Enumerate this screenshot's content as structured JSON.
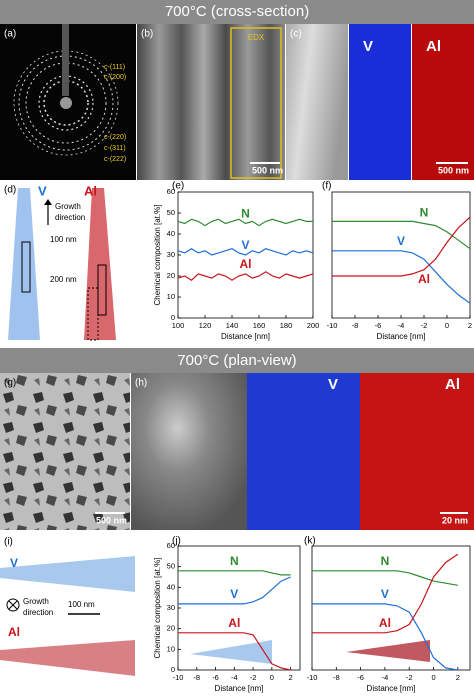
{
  "headers": [
    "700°C (cross-section)",
    "700°C (plan-view)"
  ],
  "panel_labels": [
    "(a)",
    "(b)",
    "(c)",
    "(d)",
    "(e)",
    "(f)",
    "(g)",
    "(h)",
    "(i)",
    "(j)",
    "(k)"
  ],
  "a": {
    "rings": [
      "c-(111)",
      "c-(200)",
      "c-(220)",
      "c-(311)",
      "c-(222)"
    ]
  },
  "b": {
    "box": "EDX",
    "scale": "500 nm"
  },
  "c": {
    "maps": [
      "V",
      "Al"
    ],
    "scale": "500 nm"
  },
  "d": {
    "maps": [
      "V",
      "Al"
    ],
    "growth": [
      "Growth",
      "direction"
    ],
    "scales": [
      "100 nm",
      "200 nm"
    ]
  },
  "g": {
    "scale": "500 nm"
  },
  "h": {
    "maps": [
      "V",
      "Al"
    ],
    "scale": "20 nm"
  },
  "i": {
    "maps": [
      "V",
      "Al"
    ],
    "growth": [
      "Growth",
      "direction"
    ],
    "scale": "100 nm"
  },
  "chart_data": [
    {
      "type": "line",
      "x_label": "Distance [nm]",
      "y_label": "Chemical composition [at.%]",
      "x": [
        100,
        105,
        110,
        115,
        120,
        125,
        130,
        135,
        140,
        145,
        150,
        155,
        160,
        165,
        170,
        175,
        180,
        185,
        190,
        195,
        200
      ],
      "xlim": [
        100,
        200
      ],
      "xticks": [
        100,
        120,
        140,
        160,
        180,
        200
      ],
      "ylim": [
        0,
        60
      ],
      "yticks": [
        0,
        10,
        20,
        30,
        40,
        50,
        60
      ],
      "series": [
        {
          "name": "N",
          "color": "#2e8b2e",
          "values": [
            46,
            45,
            47,
            46,
            44,
            46,
            47,
            45,
            46,
            47,
            45,
            46,
            44,
            46,
            47,
            46,
            45,
            46,
            47,
            46,
            46
          ]
        },
        {
          "name": "V",
          "color": "#1e6fd6",
          "values": [
            32,
            31,
            33,
            31,
            32,
            30,
            31,
            32,
            33,
            31,
            30,
            32,
            31,
            33,
            32,
            31,
            30,
            32,
            31,
            32,
            31
          ]
        },
        {
          "name": "Al",
          "color": "#c8141c",
          "values": [
            19,
            20,
            18,
            21,
            20,
            19,
            21,
            20,
            18,
            20,
            21,
            19,
            20,
            22,
            20,
            19,
            21,
            20,
            19,
            20,
            21
          ]
        }
      ]
    },
    {
      "type": "line",
      "x_label": "Distance [nm]",
      "x": [
        -10,
        -9,
        -8,
        -7,
        -6,
        -5,
        -4,
        -3,
        -2,
        -1,
        0,
        1,
        2
      ],
      "xlim": [
        -10,
        2
      ],
      "xticks": [
        -10,
        -8,
        -6,
        -4,
        -2,
        0,
        2
      ],
      "ylim": [
        0,
        60
      ],
      "series": [
        {
          "name": "N",
          "color": "#2e8b2e",
          "values": [
            46,
            46,
            46,
            46,
            46,
            46,
            46,
            46,
            45,
            44,
            41,
            37,
            33
          ]
        },
        {
          "name": "V",
          "color": "#1e6fd6",
          "values": [
            32,
            32,
            32,
            32,
            32,
            32,
            32,
            31,
            28,
            22,
            16,
            11,
            7
          ]
        },
        {
          "name": "Al",
          "color": "#c8141c",
          "values": [
            20,
            20,
            20,
            20,
            20,
            20,
            20,
            21,
            23,
            28,
            36,
            43,
            48
          ]
        }
      ]
    },
    {
      "type": "line",
      "x_label": "Distance [nm]",
      "y_label": "Chemical composition [at.%]",
      "x": [
        -10,
        -9,
        -8,
        -7,
        -6,
        -5,
        -4,
        -3,
        -2,
        -1,
        0,
        1,
        2
      ],
      "xlim": [
        -10,
        3
      ],
      "xticks": [
        -10,
        -8,
        -6,
        -4,
        -2,
        0,
        2
      ],
      "ylim": [
        0,
        60
      ],
      "yticks": [
        0,
        10,
        20,
        30,
        40,
        50,
        60
      ],
      "series": [
        {
          "name": "N",
          "color": "#2e8b2e",
          "values": [
            48,
            48,
            48,
            48,
            48,
            48,
            48,
            48,
            48,
            48,
            47,
            46,
            46
          ]
        },
        {
          "name": "V",
          "color": "#1e6fd6",
          "values": [
            32,
            32,
            32,
            32,
            32,
            32,
            32,
            32,
            33,
            35,
            39,
            43,
            45
          ]
        },
        {
          "name": "Al",
          "color": "#c8141c",
          "values": [
            18,
            18,
            18,
            18,
            18,
            18,
            18,
            18,
            17,
            10,
            3,
            1,
            0
          ]
        }
      ]
    },
    {
      "type": "line",
      "x_label": "Distance [nm]",
      "x": [
        -10,
        -9,
        -8,
        -7,
        -6,
        -5,
        -4,
        -3,
        -2,
        -1,
        0,
        1,
        2
      ],
      "xlim": [
        -10,
        3
      ],
      "xticks": [
        -10,
        -8,
        -6,
        -4,
        -2,
        0,
        2
      ],
      "ylim": [
        0,
        60
      ],
      "series": [
        {
          "name": "N",
          "color": "#2e8b2e",
          "values": [
            48,
            48,
            48,
            48,
            48,
            48,
            48,
            48,
            47,
            45,
            43,
            42,
            41
          ]
        },
        {
          "name": "V",
          "color": "#1e6fd6",
          "values": [
            32,
            32,
            32,
            32,
            32,
            32,
            32,
            31,
            28,
            18,
            6,
            1,
            0
          ]
        },
        {
          "name": "Al",
          "color": "#c8141c",
          "values": [
            18,
            18,
            18,
            18,
            18,
            18,
            18,
            19,
            22,
            32,
            45,
            52,
            56
          ]
        }
      ]
    }
  ]
}
